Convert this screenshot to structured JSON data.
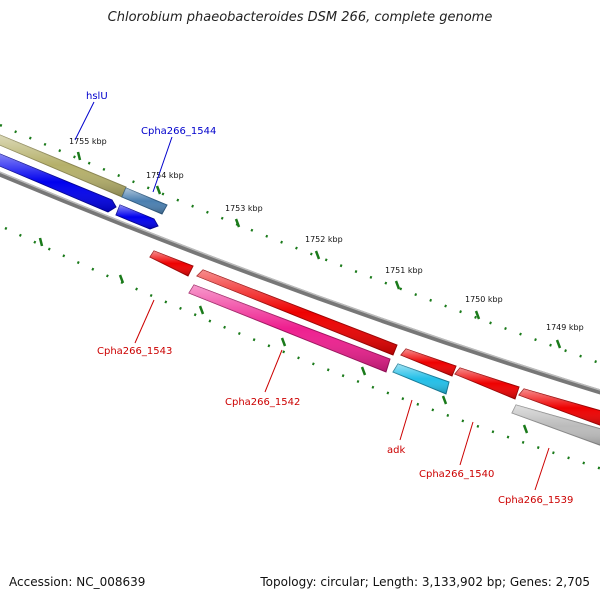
{
  "title": "Chlorobium phaeobacteroides DSM 266, complete genome",
  "footer": {
    "accession": "Accession: NC_008639",
    "meta": "Topology: circular; Length: 3,133,902 bp; Genes: 2,705"
  },
  "ruler": {
    "ticks": [
      "1755 kbp",
      "1754 kbp",
      "1753 kbp",
      "1752 kbp",
      "1751 kbp",
      "1750 kbp",
      "1749 kbp"
    ]
  },
  "genes": [
    {
      "id": "hslU",
      "label": "hslU",
      "strand": "+",
      "color": "#b5b06a",
      "label_color": "#0000cc"
    },
    {
      "id": "gene-plus-blue",
      "label": "",
      "strand": "+",
      "color": "#0000ee",
      "label_color": "#0000cc"
    },
    {
      "id": "Cpha266_1544",
      "label": "Cpha266_1544",
      "strand": "+",
      "color": "#4a7fb0",
      "label_color": "#0000cc"
    },
    {
      "id": "gene-plus-blue-2",
      "label": "",
      "strand": "+",
      "color": "#0000ee",
      "label_color": "#0000cc"
    },
    {
      "id": "Cpha266_1543",
      "label": "Cpha266_1543",
      "strand": "-",
      "color": "#ee0000",
      "label_color": "#cc0000"
    },
    {
      "id": "gene-minus-long",
      "label": "",
      "strand": "-",
      "color": "#ee0000",
      "label_color": "#cc0000"
    },
    {
      "id": "Cpha266_1542",
      "label": "Cpha266_1542",
      "strand": "-",
      "color": "#ee1f8f",
      "label_color": "#cc0000"
    },
    {
      "id": "gene-minus-short",
      "label": "",
      "strand": "-",
      "color": "#ee0000",
      "label_color": "#cc0000"
    },
    {
      "id": "adk",
      "label": "adk",
      "strand": "-",
      "color": "#22bfe8",
      "label_color": "#cc0000"
    },
    {
      "id": "Cpha266_1540",
      "label": "Cpha266_1540",
      "strand": "-",
      "color": "#ee0000",
      "label_color": "#cc0000"
    },
    {
      "id": "Cpha266_1539",
      "label": "Cpha266_1539",
      "strand": "-",
      "color": "#ee0000",
      "label_color": "#cc0000"
    },
    {
      "id": "gene-minus-grey",
      "label": "",
      "strand": "-",
      "color": "#bbbbbb",
      "label_color": "#cc0000"
    }
  ],
  "colors": {
    "backbone": "#888888",
    "tick": "#1a7a1a",
    "label_text": "#111111"
  }
}
